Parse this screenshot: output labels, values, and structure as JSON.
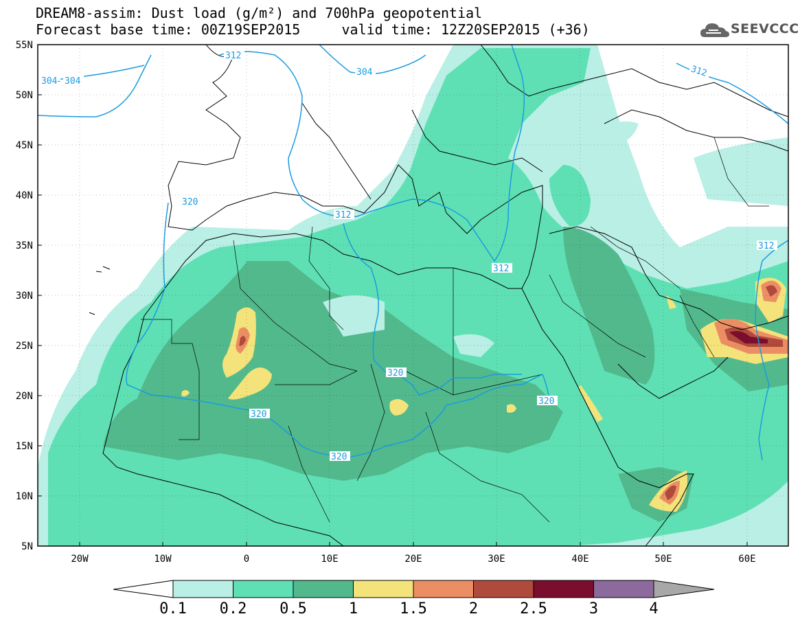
{
  "title": {
    "line1": "DREAM8-assim: Dust load (g/m²) and 700hPa geopotential",
    "line2": "Forecast base time: 00Z19SEP2015     valid time: 12Z20SEP2015 (+36)"
  },
  "logo": {
    "text": "SEEVCCC",
    "icon": "cloud-icon"
  },
  "axes": {
    "lat_labels": [
      "55N",
      "50N",
      "45N",
      "40N",
      "35N",
      "30N",
      "25N",
      "20N",
      "15N",
      "10N",
      "5N"
    ],
    "lon_labels": [
      "20W",
      "10W",
      "0",
      "10E",
      "20E",
      "30E",
      "40E",
      "50E",
      "60E"
    ]
  },
  "contour_labels": [
    "304",
    "304",
    "304",
    "312",
    "312",
    "312",
    "312",
    "312",
    "320",
    "320",
    "320",
    "320",
    "320"
  ],
  "colorbar": {
    "labels": [
      "0.1",
      "0.2",
      "0.5",
      "1",
      "1.5",
      "2",
      "2.5",
      "3",
      "4"
    ],
    "colors": [
      "#b9efe5",
      "#5fe0b4",
      "#52b98c",
      "#f3e37a",
      "#ec8e64",
      "#b04a3c",
      "#7a0e2c",
      "#8d6a9e",
      "#a8a8a8"
    ]
  },
  "colors": {
    "contour": "#1a9be0",
    "coast": "#000000",
    "c1": "#b9efe5",
    "c2": "#5fe0b4",
    "c3": "#52b98c",
    "c4": "#f3e37a",
    "c5": "#ec8e64",
    "c6": "#b04a3c",
    "c7": "#7a0e2c"
  }
}
